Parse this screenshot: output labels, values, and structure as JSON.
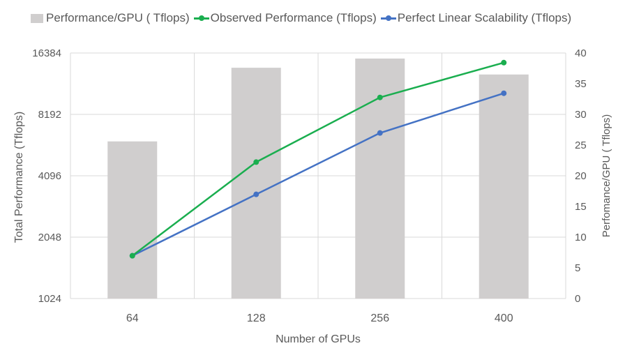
{
  "legend": {
    "bar_label": "Performance/GPU ( Tflops)",
    "observed_label": "Observed Performance (Tflops)",
    "linear_label": "Perfect Linear Scalability (Tflops)"
  },
  "colors": {
    "bar": "#d0cece",
    "observed": "#1aae4f",
    "linear": "#4472c4",
    "grid": "#d9d9d9",
    "text": "#595959"
  },
  "chart_data": {
    "type": "bar",
    "categories": [
      "64",
      "128",
      "256",
      "400"
    ],
    "xlabel": "Number of GPUs",
    "ylabel_left": "Total Performance (Tflops)",
    "ylabel_right": "Perfomance/GPU ( Tflops)",
    "y_left_scale": "log2",
    "y_left_ticks": [
      1024,
      2048,
      4096,
      8192,
      16384
    ],
    "y_left_tick_labels": [
      "1024",
      "2048",
      "4096",
      "8192",
      "16384"
    ],
    "y_right_ticks": [
      0,
      5,
      10,
      15,
      20,
      25,
      30,
      35,
      40
    ],
    "y_right_tick_labels": [
      "0",
      "5",
      "10",
      "15",
      "20",
      "25",
      "30",
      "35",
      "40"
    ],
    "ylim_left": [
      1024,
      16384
    ],
    "ylim_right": [
      0,
      40
    ],
    "grid": true,
    "legend_position": "top",
    "series": [
      {
        "name": "Performance/GPU ( Tflops)",
        "type": "bar",
        "axis": "right",
        "values": [
          25.6,
          37.6,
          39.1,
          36.5
        ]
      },
      {
        "name": "Observed Performance (Tflops)",
        "type": "line",
        "axis": "left",
        "values": [
          1660,
          4780,
          9920,
          14700
        ]
      },
      {
        "name": "Perfect Linear Scalability (Tflops)",
        "type": "line",
        "axis": "left",
        "values": [
          1660,
          3320,
          6640,
          10400
        ]
      }
    ]
  }
}
